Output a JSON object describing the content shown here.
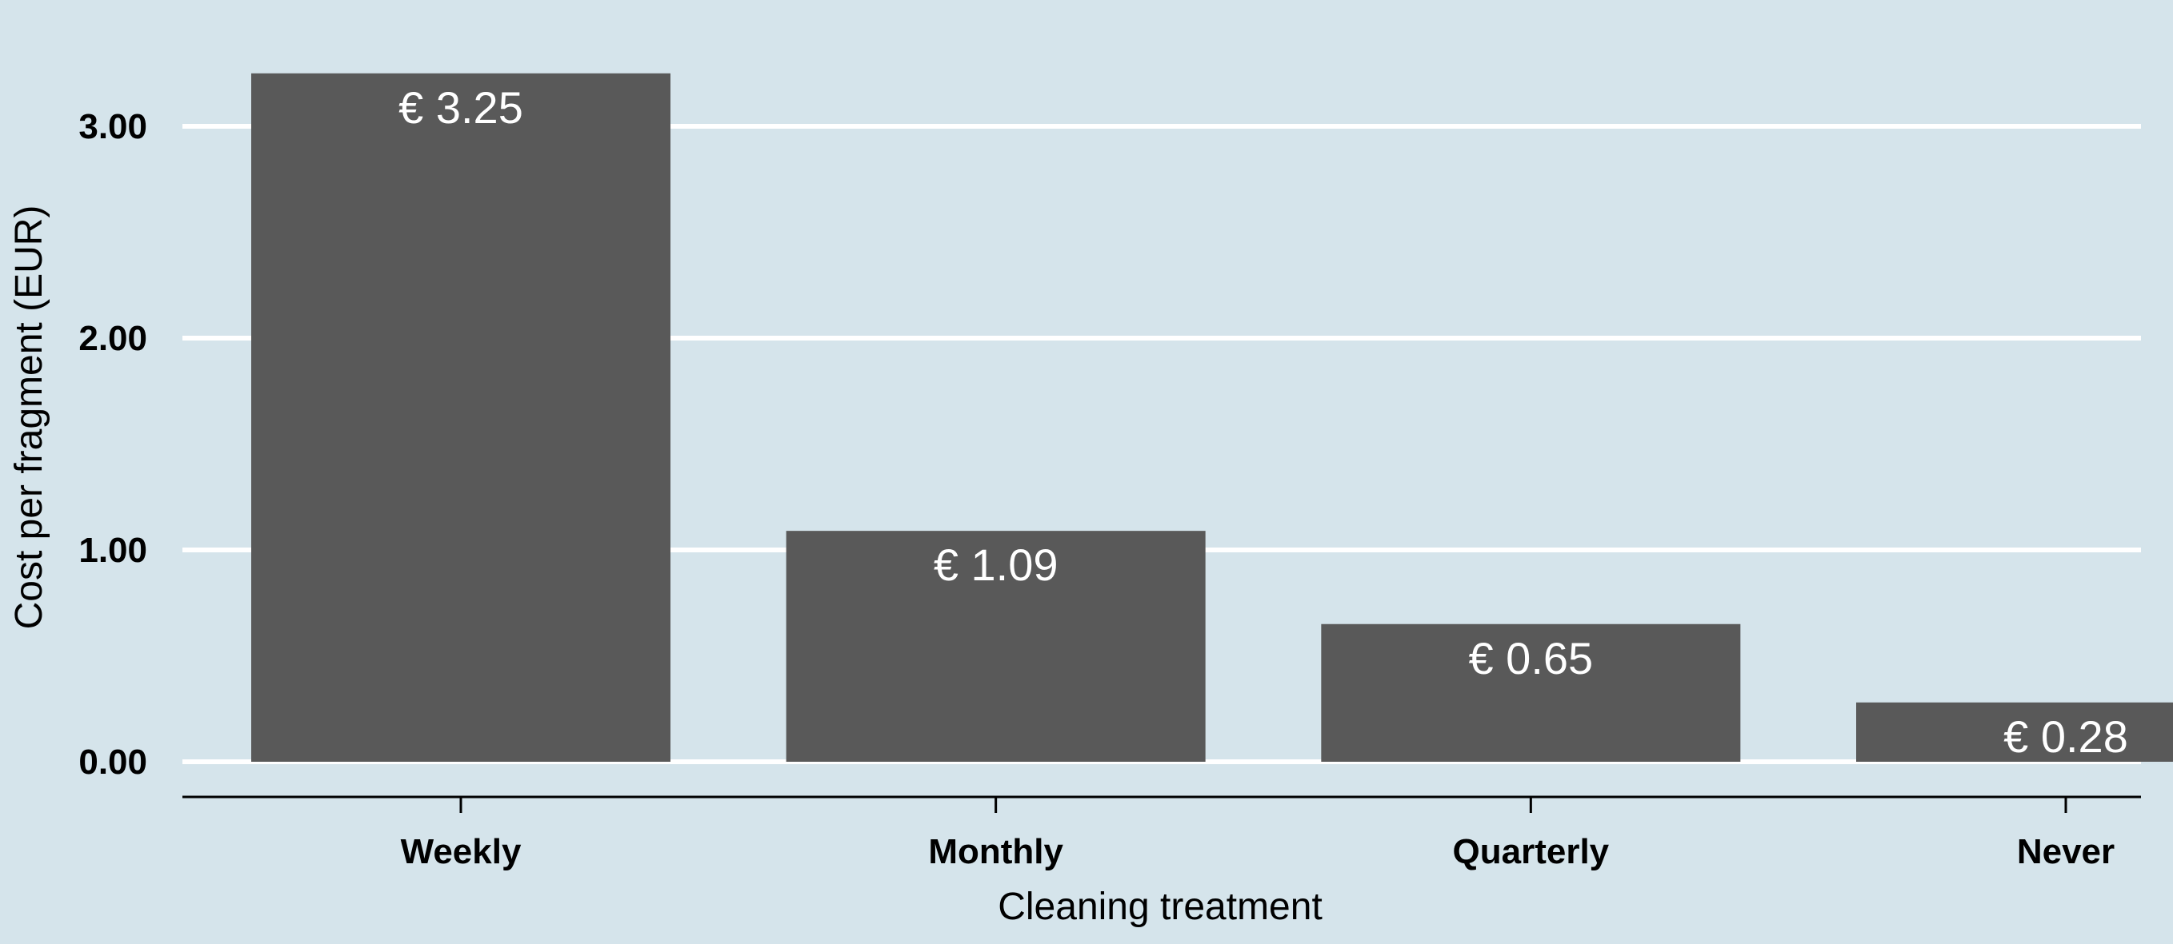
{
  "chart_data": {
    "type": "bar",
    "title": "",
    "xlabel": "Cleaning treatment",
    "ylabel": "Cost per fragment (EUR)",
    "categories": [
      "Weekly",
      "Monthly",
      "Quarterly",
      "Never"
    ],
    "values": [
      3.25,
      1.09,
      0.65,
      0.28
    ],
    "data_labels": [
      "€ 3.25",
      "€ 1.09",
      "€ 0.65",
      "€ 0.28"
    ],
    "y_ticks": [
      "0.00",
      "1.00",
      "2.00",
      "3.00"
    ],
    "y_tick_values": [
      0,
      1,
      2,
      3
    ],
    "ylim": [
      -0.16,
      3.58
    ],
    "grid": "horizontal-major",
    "legend": "none",
    "colors": {
      "background": "#d5e4eb",
      "bar": "#595959",
      "grid": "#ffffff",
      "bar_label": "#ffffff",
      "axis": "#000000"
    }
  }
}
